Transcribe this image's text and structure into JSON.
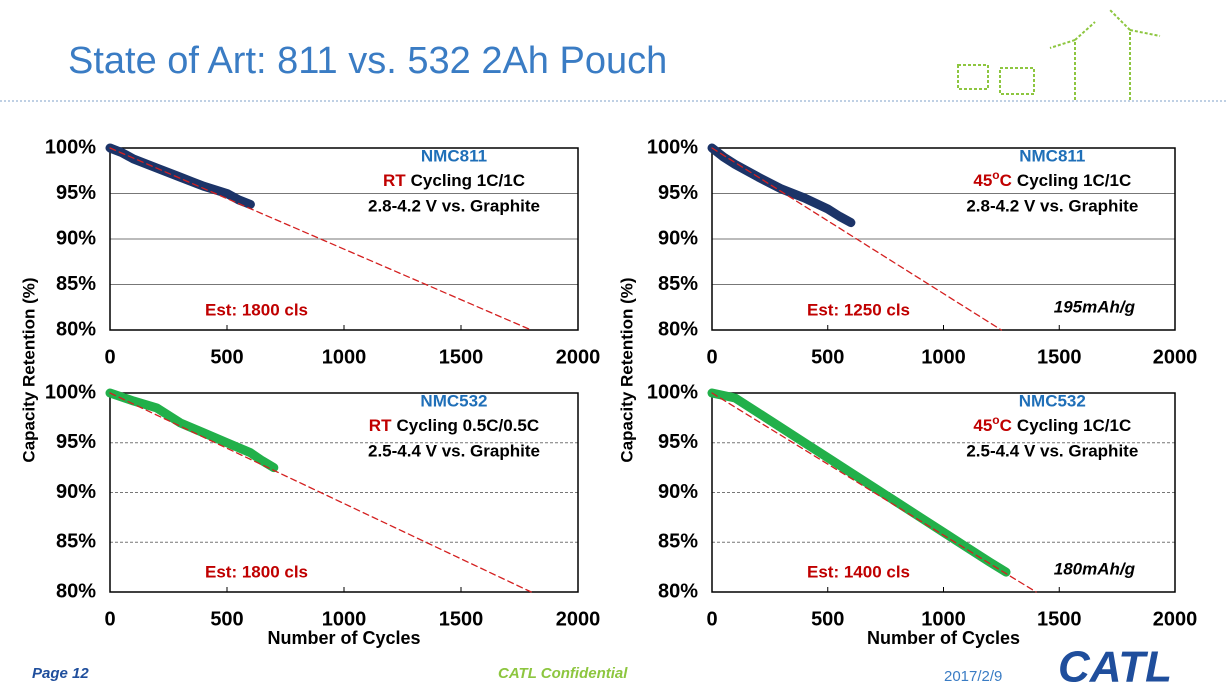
{
  "slide": {
    "title": "State of Art: 811 vs. 532 2Ah Pouch",
    "page": "Page 12",
    "confidential": "CATL Confidential",
    "date": "2017/2/9",
    "logo": "CATL"
  },
  "chart_data": [
    {
      "type": "line",
      "material": "NMC811",
      "condition_highlight": [
        "RT"
      ],
      "condition": "Cycling 1C/1C",
      "voltage": "2.8-4.2 V vs. Graphite",
      "estimate": "Est: 1800 cls",
      "y_label": "Capacity Retention (%)",
      "xlim": [
        0,
        2000
      ],
      "xticks": [
        0,
        500,
        1000,
        1500,
        2000
      ],
      "ylim": [
        80,
        100
      ],
      "yticks": [
        {
          "value": 80,
          "label": "80%"
        },
        {
          "value": 85,
          "label": "85%"
        },
        {
          "value": 90,
          "label": "90%"
        },
        {
          "value": 95,
          "label": "95%"
        },
        {
          "value": 100,
          "label": "100%"
        }
      ],
      "grid": "solid",
      "series": [
        {
          "color": "#1c3468",
          "style": "data",
          "x": [
            0,
            50,
            100,
            200,
            300,
            350,
            400,
            500,
            550,
            600
          ],
          "values": [
            100,
            99.5,
            98.8,
            97.8,
            96.8,
            96.3,
            95.8,
            95,
            94.3,
            93.8
          ]
        },
        {
          "color": "#d42020",
          "style": "trend",
          "x": [
            0,
            1800
          ],
          "values": [
            100,
            80
          ]
        }
      ]
    },
    {
      "type": "line",
      "material": "NMC811",
      "condition_highlight": [
        "45",
        "o",
        "C"
      ],
      "condition": "Cycling 1C/1C",
      "voltage": "2.8-4.2 V vs. Graphite",
      "estimate": "Est: 1250 cls",
      "capacity": "195mAh/g",
      "y_label": "Capacity Retention (%)",
      "xlim": [
        0,
        2000
      ],
      "xticks": [
        0,
        500,
        1000,
        1500,
        2000
      ],
      "ylim": [
        80,
        100
      ],
      "yticks": [
        {
          "value": 80,
          "label": "80%"
        },
        {
          "value": 85,
          "label": "85%"
        },
        {
          "value": 90,
          "label": "90%"
        },
        {
          "value": 95,
          "label": "95%"
        },
        {
          "value": 100,
          "label": "100%"
        }
      ],
      "grid": "solid",
      "series": [
        {
          "color": "#1c3468",
          "style": "data",
          "x": [
            0,
            50,
            100,
            200,
            300,
            400,
            500,
            550,
            600
          ],
          "values": [
            100,
            99,
            98.2,
            96.8,
            95.5,
            94.5,
            93.3,
            92.5,
            91.8
          ]
        },
        {
          "color": "#d42020",
          "style": "trend",
          "x": [
            0,
            1250
          ],
          "values": [
            100,
            80
          ]
        }
      ]
    },
    {
      "type": "line",
      "material": "NMC532",
      "condition_highlight": [
        "RT"
      ],
      "condition": "Cycling 0.5C/0.5C",
      "voltage": "2.5-4.4 V vs. Graphite",
      "estimate": "Est: 1800 cls",
      "x_label": "Number of Cycles",
      "xlim": [
        0,
        2000
      ],
      "xticks": [
        0,
        500,
        1000,
        1500,
        2000
      ],
      "ylim": [
        80,
        100
      ],
      "yticks": [
        {
          "value": 80,
          "label": "80%"
        },
        {
          "value": 85,
          "label": "85%"
        },
        {
          "value": 90,
          "label": "90%"
        },
        {
          "value": 95,
          "label": "95%"
        },
        {
          "value": 100,
          "label": "100%"
        }
      ],
      "grid": "dashed",
      "series": [
        {
          "color": "#22b04a",
          "style": "data",
          "x": [
            0,
            100,
            200,
            300,
            400,
            500,
            600,
            650,
            700
          ],
          "values": [
            100,
            99.2,
            98.5,
            97,
            96,
            95,
            94,
            93.2,
            92.5
          ]
        },
        {
          "color": "#d42020",
          "style": "trend",
          "x": [
            0,
            1800
          ],
          "values": [
            100,
            80
          ]
        }
      ]
    },
    {
      "type": "line",
      "material": "NMC532",
      "condition_highlight": [
        "45",
        "o",
        "C"
      ],
      "condition": "Cycling 1C/1C",
      "voltage": "2.5-4.4 V vs. Graphite",
      "estimate": "Est: 1400 cls",
      "capacity": "180mAh/g",
      "x_label": "Number of Cycles",
      "xlim": [
        0,
        2000
      ],
      "xticks": [
        0,
        500,
        1000,
        1500,
        2000
      ],
      "ylim": [
        80,
        100
      ],
      "yticks": [
        {
          "value": 80,
          "label": "80%"
        },
        {
          "value": 85,
          "label": "85%"
        },
        {
          "value": 90,
          "label": "90%"
        },
        {
          "value": 95,
          "label": "95%"
        },
        {
          "value": 100,
          "label": "100%"
        }
      ],
      "grid": "dashed",
      "series": [
        {
          "color": "#22b04a",
          "style": "data",
          "x": [
            0,
            100,
            200,
            300,
            400,
            500,
            600,
            700,
            800,
            900,
            1000,
            1100,
            1200,
            1270
          ],
          "values": [
            100,
            99.5,
            98,
            96.5,
            95,
            93.5,
            92,
            90.5,
            89,
            87.5,
            86,
            84.5,
            83,
            82
          ]
        },
        {
          "color": "#d42020",
          "style": "trend",
          "x": [
            0,
            1400
          ],
          "values": [
            100,
            80
          ]
        }
      ]
    }
  ]
}
